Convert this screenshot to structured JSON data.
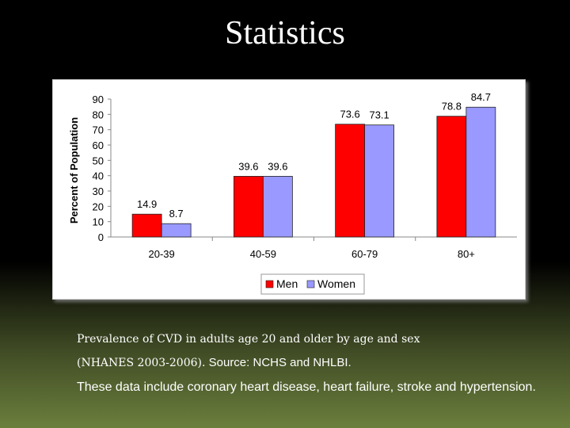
{
  "slide": {
    "title": "Statistics",
    "caption_line1": "Prevalence of CVD in adults age 20 and older by age and sex",
    "caption_line2_a": "(NHANES 2003-2006).",
    "caption_line2_b": "Source: NCHS and NHLBI.",
    "caption_line3": "These data include coronary heart disease, heart failure, stroke and hypertension."
  },
  "chart_data": {
    "type": "bar",
    "title": "",
    "xlabel": "",
    "ylabel": "Percent of Population",
    "ylim": [
      0,
      90
    ],
    "yticks": [
      "0",
      "10",
      "20",
      "30",
      "40",
      "50",
      "60",
      "70",
      "80",
      "90"
    ],
    "categories": [
      "20-39",
      "40-59",
      "60-79",
      "80+"
    ],
    "series": [
      {
        "name": "Men",
        "color": "#ff0000",
        "values": [
          14.9,
          39.6,
          73.6,
          78.8
        ],
        "labels": [
          "14.9",
          "39.6",
          "73.6",
          "78.8"
        ]
      },
      {
        "name": "Women",
        "color": "#9999ff",
        "values": [
          8.7,
          39.6,
          73.1,
          84.7
        ],
        "labels": [
          "8.7",
          "39.6",
          "73.1",
          "84.7"
        ]
      }
    ],
    "legend": "bottom-center",
    "grid": false
  }
}
